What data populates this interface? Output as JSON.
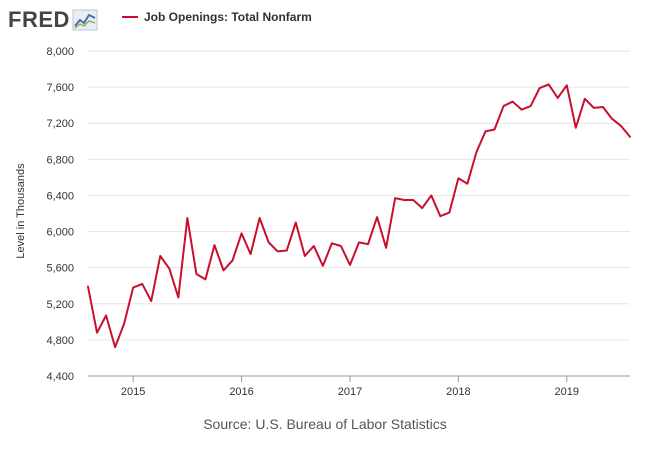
{
  "header": {
    "logo_text": "FRED",
    "logo_icon": "line-chart-icon",
    "legend_label": "Job Openings: Total Nonfarm"
  },
  "source_text": "Source: U.S. Bureau of Labor Statistics",
  "colors": {
    "series": "#c8102e",
    "grid": "#e6e6e6",
    "axis": "#999999"
  },
  "chart_data": {
    "type": "line",
    "title": "",
    "xlabel": "",
    "ylabel": "Level in Thousands",
    "ylim": [
      4400,
      8000
    ],
    "yticks": [
      "4,400",
      "4,800",
      "5,200",
      "5,600",
      "6,000",
      "6,400",
      "6,800",
      "7,200",
      "7,600",
      "8,000"
    ],
    "xticks": [
      {
        "label": "2015",
        "date": "2015-01"
      },
      {
        "label": "2016",
        "date": "2016-01"
      },
      {
        "label": "2017",
        "date": "2017-01"
      },
      {
        "label": "2018",
        "date": "2018-01"
      },
      {
        "label": "2019",
        "date": "2019-01"
      }
    ],
    "xlim": [
      "2014-08",
      "2019-08"
    ],
    "grid": true,
    "legend": "top-left",
    "series": [
      {
        "name": "Job Openings: Total Nonfarm",
        "x": [
          "2014-08",
          "2014-09",
          "2014-10",
          "2014-11",
          "2014-12",
          "2015-01",
          "2015-02",
          "2015-03",
          "2015-04",
          "2015-05",
          "2015-06",
          "2015-07",
          "2015-08",
          "2015-09",
          "2015-10",
          "2015-11",
          "2015-12",
          "2016-01",
          "2016-02",
          "2016-03",
          "2016-04",
          "2016-05",
          "2016-06",
          "2016-07",
          "2016-08",
          "2016-09",
          "2016-10",
          "2016-11",
          "2016-12",
          "2017-01",
          "2017-02",
          "2017-03",
          "2017-04",
          "2017-05",
          "2017-06",
          "2017-07",
          "2017-08",
          "2017-09",
          "2017-10",
          "2017-11",
          "2017-12",
          "2018-01",
          "2018-02",
          "2018-03",
          "2018-04",
          "2018-05",
          "2018-06",
          "2018-07",
          "2018-08",
          "2018-09",
          "2018-10",
          "2018-11",
          "2018-12",
          "2019-01",
          "2019-02",
          "2019-03",
          "2019-04",
          "2019-05",
          "2019-06",
          "2019-07",
          "2019-08"
        ],
        "values": [
          5390,
          4880,
          5070,
          4720,
          4980,
          5380,
          5420,
          5230,
          5730,
          5590,
          5270,
          6150,
          5530,
          5470,
          5850,
          5570,
          5680,
          5980,
          5750,
          6150,
          5880,
          5780,
          5790,
          6100,
          5730,
          5840,
          5620,
          5870,
          5840,
          5630,
          5880,
          5860,
          6160,
          5820,
          6370,
          6350,
          6350,
          6260,
          6400,
          6170,
          6210,
          6590,
          6530,
          6880,
          7110,
          7130,
          7390,
          7440,
          7350,
          7390,
          7590,
          7630,
          7480,
          7620,
          7150,
          7470,
          7370,
          7380,
          7250,
          7170,
          7050
        ]
      }
    ]
  }
}
